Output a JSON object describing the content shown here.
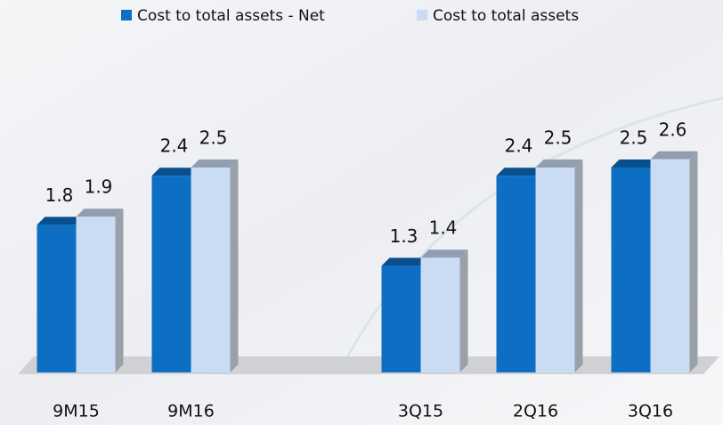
{
  "chart_data": {
    "type": "bar3d",
    "categories": [
      "9M15",
      "9M16",
      null,
      "3Q15",
      "2Q16",
      "3Q16"
    ],
    "series": [
      {
        "name": "Cost to total assets - Net",
        "color": "#0d6ec4",
        "values": [
          1.8,
          2.4,
          null,
          1.3,
          2.4,
          2.5
        ]
      },
      {
        "name": "Cost to total assets",
        "color": "#c9dcf3",
        "values": [
          1.9,
          2.5,
          null,
          1.4,
          2.5,
          2.6
        ]
      }
    ],
    "legend": "top"
  }
}
